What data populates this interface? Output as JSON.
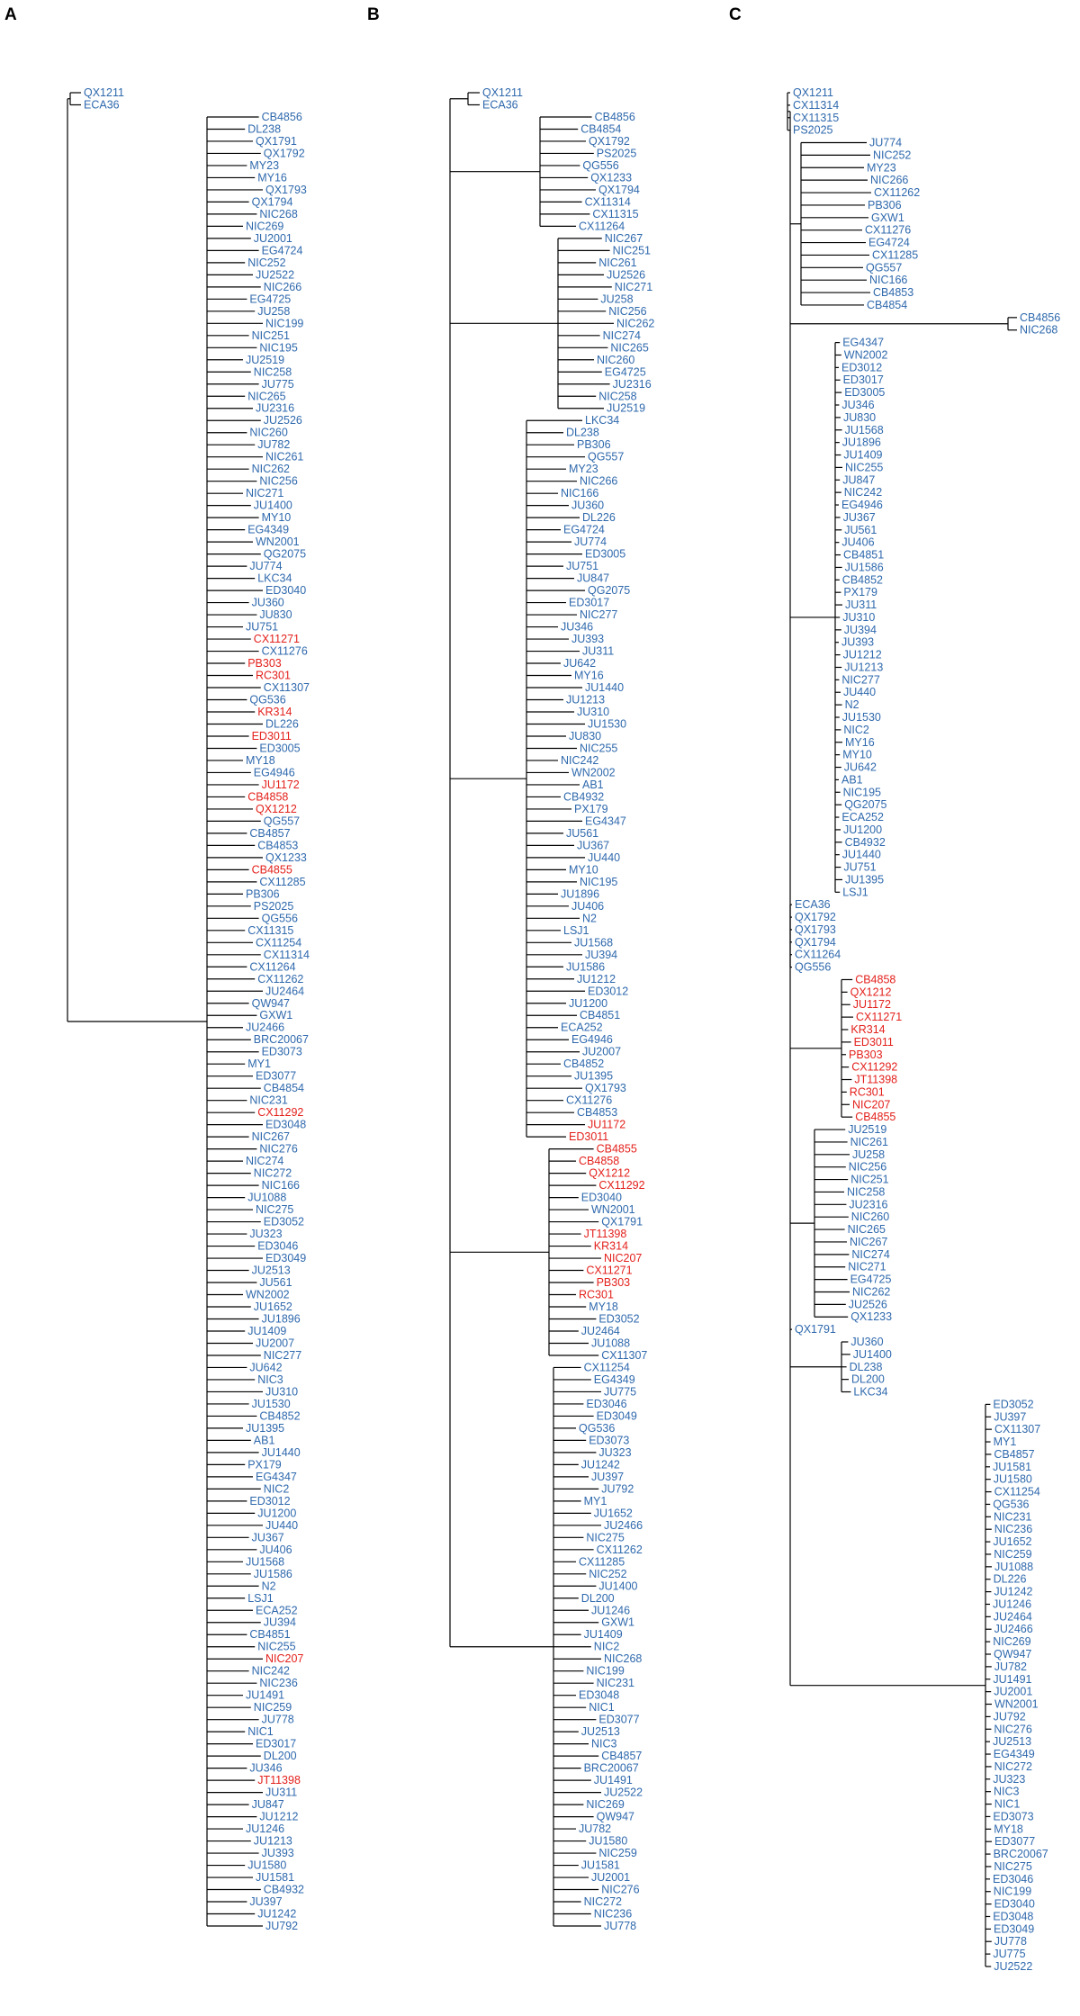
{
  "figure": {
    "colors": {
      "highlight": "#e3211c",
      "normal": "#2f69ad",
      "branch": "#000000"
    },
    "panels": [
      {
        "letter": "A",
        "highlighted": [
          "CX11271",
          "PB303",
          "RC301",
          "KR314",
          "ED3011",
          "JU1172",
          "CB4858",
          "QX1212",
          "CB4855",
          "CX11292",
          "NIC207",
          "JT11398"
        ],
        "leaves": [
          "QX1211",
          "ECA36",
          "CB4856",
          "DL238",
          "QX1791",
          "QX1792",
          "MY23",
          "MY16",
          "QX1793",
          "QX1794",
          "NIC268",
          "NIC269",
          "JU2001",
          "EG4724",
          "NIC252",
          "JU2522",
          "NIC266",
          "EG4725",
          "JU258",
          "NIC199",
          "NIC251",
          "NIC195",
          "JU2519",
          "NIC258",
          "JU775",
          "NIC265",
          "JU2316",
          "JU2526",
          "NIC260",
          "JU782",
          "NIC261",
          "NIC262",
          "NIC256",
          "NIC271",
          "JU1400",
          "MY10",
          "EG4349",
          "WN2001",
          "QG2075",
          "JU774",
          "LKC34",
          "ED3040",
          "JU360",
          "JU830",
          "JU751",
          "CX11271",
          "CX11276",
          "PB303",
          "RC301",
          "CX11307",
          "QG536",
          "KR314",
          "DL226",
          "ED3011",
          "ED3005",
          "MY18",
          "EG4946",
          "JU1172",
          "CB4858",
          "QX1212",
          "QG557",
          "CB4857",
          "CB4853",
          "QX1233",
          "CB4855",
          "CX11285",
          "PB306",
          "PS2025",
          "QG556",
          "CX11315",
          "CX11254",
          "CX11314",
          "CX11264",
          "CX11262",
          "JU2464",
          "QW947",
          "GXW1",
          "JU2466",
          "BRC20067",
          "ED3073",
          "MY1",
          "ED3077",
          "CB4854",
          "NIC231",
          "CX11292",
          "ED3048",
          "NIC267",
          "NIC276",
          "NIC274",
          "NIC272",
          "NIC166",
          "JU1088",
          "NIC275",
          "ED3052",
          "JU323",
          "ED3046",
          "ED3049",
          "JU2513",
          "JU561",
          "WN2002",
          "JU1652",
          "JU1896",
          "JU1409",
          "JU2007",
          "NIC277",
          "JU642",
          "NIC3",
          "JU310",
          "JU1530",
          "CB4852",
          "JU1395",
          "AB1",
          "JU1440",
          "PX179",
          "EG4347",
          "NIC2",
          "ED3012",
          "JU1200",
          "JU440",
          "JU367",
          "JU406",
          "JU1568",
          "JU1586",
          "N2",
          "LSJ1",
          "ECA252",
          "JU394",
          "CB4851",
          "NIC255",
          "NIC207",
          "NIC242",
          "NIC236",
          "JU1491",
          "NIC259",
          "JU778",
          "NIC1",
          "ED3017",
          "DL200",
          "JU346",
          "JT11398",
          "JU311",
          "JU847",
          "JU1212",
          "JU1246",
          "JU1213",
          "JU393",
          "JU1580",
          "JU1581",
          "CB4932",
          "JU397",
          "JU1242",
          "JU792"
        ]
      },
      {
        "letter": "B",
        "highlighted": [
          "JU1172",
          "ED3011",
          "CB4855",
          "CB4858",
          "QX1212",
          "CX11292",
          "JT11398",
          "KR314",
          "NIC207",
          "CX11271",
          "PB303",
          "RC301"
        ],
        "leaves": [
          "QX1211",
          "ECA36",
          "CB4856",
          "CB4854",
          "QX1792",
          "PS2025",
          "QG556",
          "QX1233",
          "QX1794",
          "CX11314",
          "CX11315",
          "CX11264",
          "NIC267",
          "NIC251",
          "NIC261",
          "JU2526",
          "NIC271",
          "JU258",
          "NIC256",
          "NIC262",
          "NIC274",
          "NIC265",
          "NIC260",
          "EG4725",
          "JU2316",
          "NIC258",
          "JU2519",
          "LKC34",
          "DL238",
          "PB306",
          "QG557",
          "MY23",
          "NIC266",
          "NIC166",
          "JU360",
          "DL226",
          "EG4724",
          "JU774",
          "ED3005",
          "JU751",
          "JU847",
          "QG2075",
          "ED3017",
          "NIC277",
          "JU346",
          "JU393",
          "JU311",
          "JU642",
          "MY16",
          "JU1440",
          "JU1213",
          "JU310",
          "JU1530",
          "JU830",
          "NIC255",
          "NIC242",
          "WN2002",
          "AB1",
          "CB4932",
          "PX179",
          "EG4347",
          "JU561",
          "JU367",
          "JU440",
          "MY10",
          "NIC195",
          "JU1896",
          "JU406",
          "N2",
          "LSJ1",
          "JU1568",
          "JU394",
          "JU1586",
          "JU1212",
          "ED3012",
          "JU1200",
          "CB4851",
          "ECA252",
          "EG4946",
          "JU2007",
          "CB4852",
          "JU1395",
          "QX1793",
          "CX11276",
          "CB4853",
          "JU1172",
          "ED3011",
          "CB4855",
          "CB4858",
          "QX1212",
          "CX11292",
          "ED3040",
          "WN2001",
          "QX1791",
          "JT11398",
          "KR314",
          "NIC207",
          "CX11271",
          "PB303",
          "RC301",
          "MY18",
          "ED3052",
          "JU2464",
          "JU1088",
          "CX11307",
          "CX11254",
          "EG4349",
          "JU775",
          "ED3046",
          "ED3049",
          "QG536",
          "ED3073",
          "JU323",
          "JU1242",
          "JU397",
          "JU792",
          "MY1",
          "JU1652",
          "JU2466",
          "NIC275",
          "CX11262",
          "CX11285",
          "NIC252",
          "JU1400",
          "DL200",
          "JU1246",
          "GXW1",
          "JU1409",
          "NIC2",
          "NIC268",
          "NIC199",
          "NIC231",
          "ED3048",
          "NIC1",
          "ED3077",
          "JU2513",
          "NIC3",
          "CB4857",
          "BRC20067",
          "JU1491",
          "JU2522",
          "NIC269",
          "QW947",
          "JU782",
          "JU1580",
          "NIC259",
          "JU1581",
          "JU2001",
          "NIC276",
          "NIC272",
          "NIC236",
          "JU778"
        ]
      },
      {
        "letter": "C",
        "highlighted": [
          "CB4858",
          "QX1212",
          "JU1172",
          "CX11271",
          "KR314",
          "ED3011",
          "PB303",
          "CX11292",
          "JT11398",
          "RC301",
          "NIC207",
          "CB4855"
        ],
        "leaves": [
          "QX1211",
          "CX11314",
          "CX11315",
          "PS2025",
          "JU774",
          "NIC252",
          "MY23",
          "NIC266",
          "CX11262",
          "PB306",
          "GXW1",
          "CX11276",
          "EG4724",
          "CX11285",
          "QG557",
          "NIC166",
          "CB4853",
          "CB4854",
          "CB4856",
          "NIC268",
          "EG4347",
          "WN2002",
          "ED3012",
          "ED3017",
          "ED3005",
          "JU346",
          "JU830",
          "JU1568",
          "JU1896",
          "JU1409",
          "NIC255",
          "JU847",
          "NIC242",
          "EG4946",
          "JU367",
          "JU561",
          "JU406",
          "CB4851",
          "JU1586",
          "CB4852",
          "PX179",
          "JU311",
          "JU310",
          "JU394",
          "JU393",
          "JU1212",
          "JU1213",
          "NIC277",
          "JU440",
          "N2",
          "JU1530",
          "NIC2",
          "MY16",
          "MY10",
          "JU642",
          "AB1",
          "NIC195",
          "QG2075",
          "ECA252",
          "JU1200",
          "CB4932",
          "JU1440",
          "JU751",
          "JU1395",
          "LSJ1",
          "ECA36",
          "QX1792",
          "QX1793",
          "QX1794",
          "CX11264",
          "QG556",
          "CB4858",
          "QX1212",
          "JU1172",
          "CX11271",
          "KR314",
          "ED3011",
          "PB303",
          "CX11292",
          "JT11398",
          "RC301",
          "NIC207",
          "CB4855",
          "JU2519",
          "NIC261",
          "JU258",
          "NIC256",
          "NIC251",
          "NIC258",
          "JU2316",
          "NIC260",
          "NIC265",
          "NIC267",
          "NIC274",
          "NIC271",
          "EG4725",
          "NIC262",
          "JU2526",
          "QX1233",
          "QX1791",
          "JU360",
          "JU1400",
          "DL238",
          "DL200",
          "LKC34",
          "ED3052",
          "JU397",
          "CX11307",
          "MY1",
          "CB4857",
          "JU1581",
          "JU1580",
          "CX11254",
          "QG536",
          "NIC231",
          "NIC236",
          "JU1652",
          "NIC259",
          "JU1088",
          "DL226",
          "JU1242",
          "JU1246",
          "JU2464",
          "JU2466",
          "NIC269",
          "QW947",
          "JU782",
          "JU1491",
          "JU2001",
          "WN2001",
          "JU792",
          "NIC276",
          "JU2513",
          "EG4349",
          "NIC272",
          "JU323",
          "NIC3",
          "NIC1",
          "ED3073",
          "MY18",
          "ED3077",
          "BRC20067",
          "NIC275",
          "ED3046",
          "NIC199",
          "ED3040",
          "ED3048",
          "ED3049",
          "JU778",
          "JU775",
          "JU2522"
        ]
      }
    ]
  }
}
